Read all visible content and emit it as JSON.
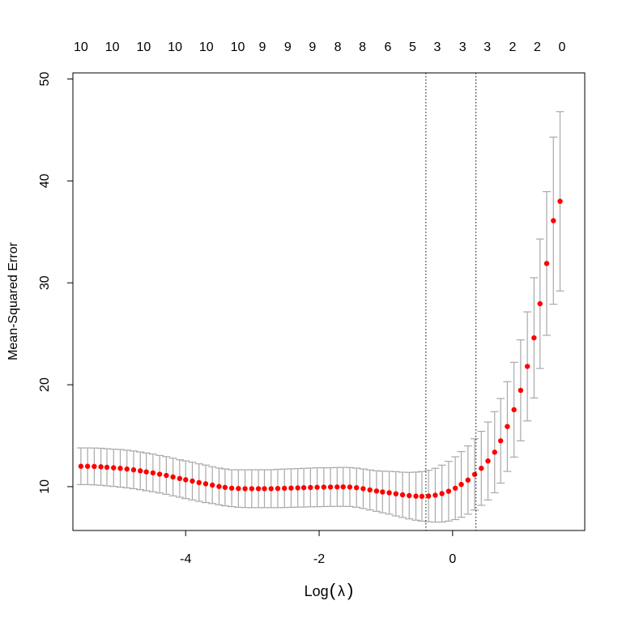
{
  "chart_data": {
    "type": "scatter",
    "title": "",
    "xlabel": "Log(λ)",
    "xlabel_prefix": "Log",
    "xlabel_symbol": "λ",
    "ylabel": "Mean-Squared Error",
    "xlim": [
      -5.69,
      1.98
    ],
    "ylim": [
      5.7,
      50.6
    ],
    "x_ticks": [
      -4,
      -2,
      0
    ],
    "y_ticks": [
      10,
      20,
      30,
      40,
      50
    ],
    "grid": false,
    "point_color": "#ff0000",
    "errorbar_color": "#a9a9a9",
    "top_axis_labels": [
      {
        "x": -5.57,
        "label": "10"
      },
      {
        "x": -5.1,
        "label": "10"
      },
      {
        "x": -4.63,
        "label": "10"
      },
      {
        "x": -4.16,
        "label": "10"
      },
      {
        "x": -3.69,
        "label": "10"
      },
      {
        "x": -3.22,
        "label": "10"
      },
      {
        "x": -2.85,
        "label": "9"
      },
      {
        "x": -2.47,
        "label": "9"
      },
      {
        "x": -2.1,
        "label": "9"
      },
      {
        "x": -1.72,
        "label": "8"
      },
      {
        "x": -1.35,
        "label": "8"
      },
      {
        "x": -0.97,
        "label": "6"
      },
      {
        "x": -0.6,
        "label": "5"
      },
      {
        "x": -0.23,
        "label": "3"
      },
      {
        "x": 0.15,
        "label": "3"
      },
      {
        "x": 0.52,
        "label": "3"
      },
      {
        "x": 0.9,
        "label": "2"
      },
      {
        "x": 1.27,
        "label": "2"
      },
      {
        "x": 1.64,
        "label": "0"
      }
    ],
    "vlines": [
      {
        "x": -0.4,
        "style": "dotted"
      },
      {
        "x": 0.35,
        "style": "dotted"
      }
    ],
    "series": [
      {
        "x": [
          -5.57,
          -5.47,
          -5.37,
          -5.27,
          -5.18,
          -5.08,
          -4.98,
          -4.88,
          -4.78,
          -4.68,
          -4.59,
          -4.49,
          -4.39,
          -4.29,
          -4.19,
          -4.09,
          -4.0,
          -3.9,
          -3.8,
          -3.7,
          -3.6,
          -3.5,
          -3.41,
          -3.31,
          -3.21,
          -3.11,
          -3.01,
          -2.91,
          -2.82,
          -2.72,
          -2.62,
          -2.52,
          -2.42,
          -2.32,
          -2.23,
          -2.13,
          -2.03,
          -1.93,
          -1.83,
          -1.73,
          -1.64,
          -1.54,
          -1.44,
          -1.34,
          -1.24,
          -1.14,
          -1.05,
          -0.95,
          -0.85,
          -0.75,
          -0.65,
          -0.55,
          -0.46,
          -0.36,
          -0.26,
          -0.16,
          -0.06,
          0.04,
          0.13,
          0.23,
          0.33,
          0.43,
          0.53,
          0.63,
          0.72,
          0.82,
          0.92,
          1.02,
          1.12,
          1.22,
          1.31,
          1.41,
          1.51,
          1.61
        ],
        "y": [
          12.0,
          12.0,
          11.98,
          11.95,
          11.9,
          11.85,
          11.8,
          11.73,
          11.65,
          11.55,
          11.45,
          11.35,
          11.22,
          11.1,
          10.95,
          10.8,
          10.68,
          10.55,
          10.4,
          10.28,
          10.15,
          10.02,
          9.93,
          9.85,
          9.82,
          9.8,
          9.8,
          9.8,
          9.8,
          9.8,
          9.82,
          9.84,
          9.86,
          9.88,
          9.9,
          9.92,
          9.94,
          9.95,
          9.96,
          9.97,
          9.98,
          9.96,
          9.9,
          9.8,
          9.68,
          9.57,
          9.48,
          9.4,
          9.3,
          9.2,
          9.12,
          9.07,
          9.05,
          9.08,
          9.16,
          9.32,
          9.55,
          9.85,
          10.22,
          10.65,
          11.2,
          11.8,
          12.52,
          13.38,
          14.5,
          15.9,
          17.55,
          19.45,
          21.8,
          24.6,
          27.95,
          31.9,
          36.1,
          38.0
        ],
        "lower": [
          10.2,
          10.2,
          10.17,
          10.13,
          10.08,
          10.02,
          9.95,
          9.88,
          9.8,
          9.7,
          9.6,
          9.5,
          9.38,
          9.25,
          9.1,
          8.96,
          8.83,
          8.7,
          8.56,
          8.44,
          8.34,
          8.22,
          8.12,
          8.04,
          7.98,
          7.95,
          7.94,
          7.94,
          7.94,
          7.94,
          7.94,
          7.95,
          7.97,
          7.99,
          8.0,
          8.02,
          8.03,
          8.05,
          8.06,
          8.06,
          8.07,
          8.05,
          7.98,
          7.86,
          7.72,
          7.58,
          7.44,
          7.3,
          7.13,
          6.98,
          6.84,
          6.71,
          6.62,
          6.55,
          6.52,
          6.53,
          6.62,
          6.77,
          7.0,
          7.3,
          7.7,
          8.17,
          8.7,
          9.4,
          10.35,
          11.5,
          12.9,
          14.5,
          16.45,
          18.7,
          21.6,
          24.85,
          27.9,
          29.2
        ],
        "upper": [
          13.8,
          13.8,
          13.79,
          13.77,
          13.72,
          13.68,
          13.65,
          13.58,
          13.5,
          13.4,
          13.3,
          13.2,
          13.06,
          12.95,
          12.8,
          12.64,
          12.53,
          12.4,
          12.24,
          12.12,
          11.96,
          11.82,
          11.74,
          11.66,
          11.66,
          11.65,
          11.66,
          11.66,
          11.66,
          11.66,
          11.7,
          11.73,
          11.75,
          11.77,
          11.8,
          11.82,
          11.85,
          11.85,
          11.86,
          11.88,
          11.89,
          11.87,
          11.82,
          11.74,
          11.64,
          11.56,
          11.52,
          11.5,
          11.47,
          11.42,
          11.4,
          11.43,
          11.48,
          11.61,
          11.8,
          12.11,
          12.48,
          12.93,
          13.44,
          14.0,
          14.7,
          15.43,
          16.34,
          17.36,
          18.65,
          20.3,
          22.2,
          24.4,
          27.15,
          30.5,
          34.3,
          38.95,
          44.3,
          46.8
        ]
      }
    ]
  }
}
